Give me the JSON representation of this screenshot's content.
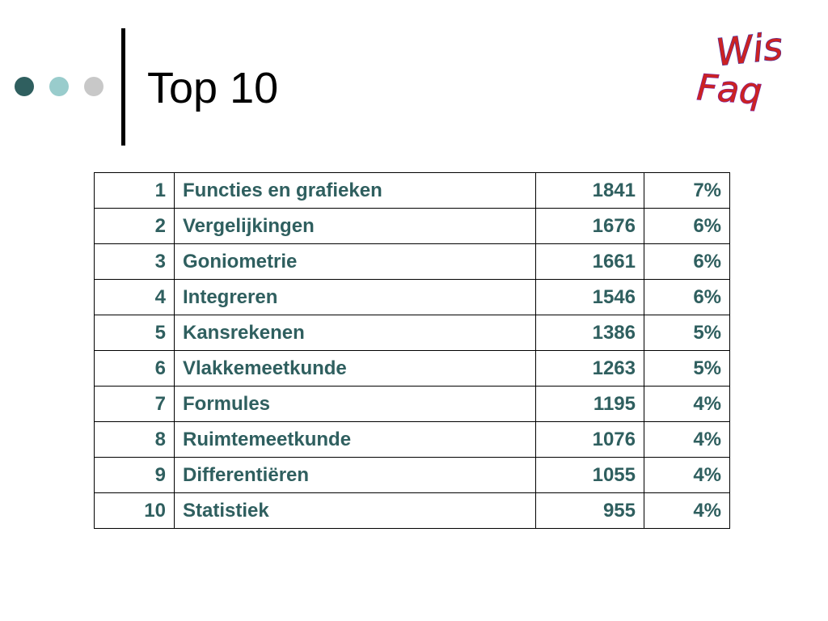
{
  "slide": {
    "title": "Top 10",
    "bullet_colors": [
      "#2f5f5f",
      "#99cccc",
      "#c8c8c8"
    ],
    "divider_color": "#000000"
  },
  "logo": {
    "line1": "Wis",
    "line2": "Faq",
    "colors": [
      "#cc2222",
      "#4433aa",
      "#7722aa"
    ]
  },
  "table": {
    "text_color": "#2f5f5f",
    "rows": [
      {
        "rank": "1",
        "topic": "Functies en grafieken",
        "count": "1841",
        "percent": "7%"
      },
      {
        "rank": "2",
        "topic": "Vergelijkingen",
        "count": "1676",
        "percent": "6%"
      },
      {
        "rank": "3",
        "topic": "Goniometrie",
        "count": "1661",
        "percent": "6%"
      },
      {
        "rank": "4",
        "topic": "Integreren",
        "count": "1546",
        "percent": "6%"
      },
      {
        "rank": "5",
        "topic": "Kansrekenen",
        "count": "1386",
        "percent": "5%"
      },
      {
        "rank": "6",
        "topic": "Vlakkemeetkunde",
        "count": "1263",
        "percent": "5%"
      },
      {
        "rank": "7",
        "topic": "Formules",
        "count": "1195",
        "percent": "4%"
      },
      {
        "rank": "8",
        "topic": "Ruimtemeetkunde",
        "count": "1076",
        "percent": "4%"
      },
      {
        "rank": "9",
        "topic": "Differentiëren",
        "count": "1055",
        "percent": "4%"
      },
      {
        "rank": "10",
        "topic": "Statistiek",
        "count": "955",
        "percent": "4%"
      }
    ]
  }
}
